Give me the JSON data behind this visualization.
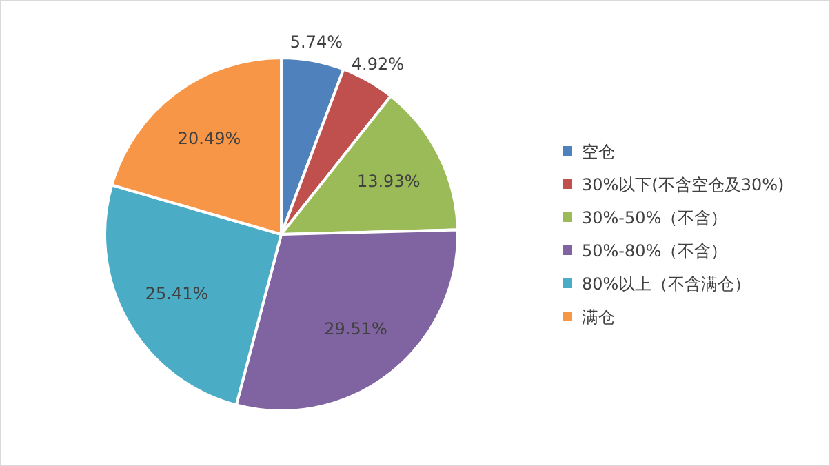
{
  "chart_data": {
    "type": "pie",
    "categories": [
      "空仓",
      "30%以下(不含空仓及30%)",
      "30%-50%（不含）",
      "50%-80%（不含）",
      "80%以上（不含满仓）",
      "满仓"
    ],
    "values": [
      5.74,
      4.92,
      13.93,
      29.51,
      25.41,
      20.49
    ],
    "colors": [
      "#4f81bd",
      "#c0504d",
      "#9bbb59",
      "#8064a2",
      "#4bacc6",
      "#f79646"
    ],
    "value_labels": [
      "5.74%",
      "4.92%",
      "13.93%",
      "29.51%",
      "25.41%",
      "20.49%"
    ],
    "legend": "right"
  }
}
